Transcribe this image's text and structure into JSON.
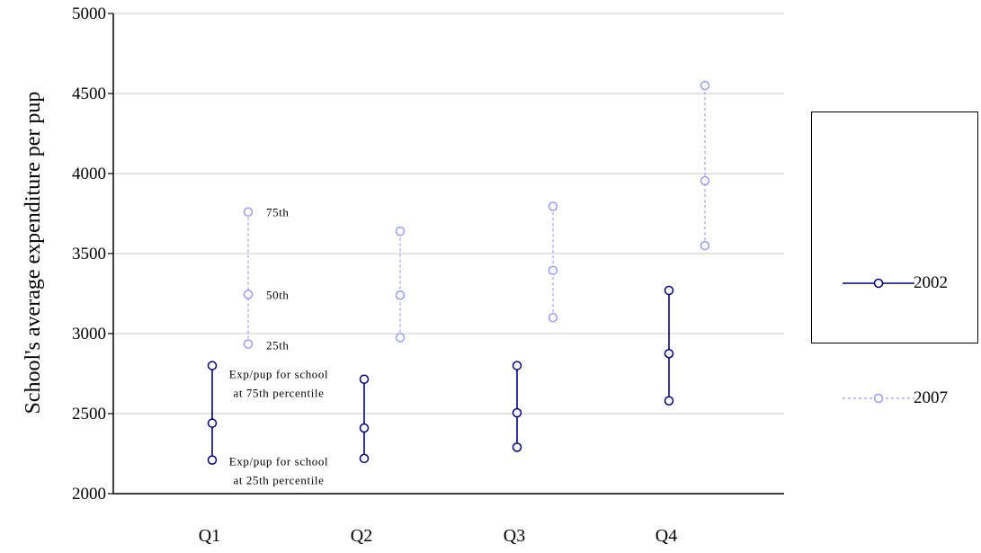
{
  "chart_data": {
    "type": "line",
    "title": "",
    "ylabel": "School's average expenditure per pup",
    "xlabel": "",
    "categories": [
      "Q1",
      "Q2",
      "Q3",
      "Q4"
    ],
    "ylim": [
      2000,
      5000
    ],
    "yticks": [
      2000,
      2500,
      3000,
      3500,
      4000,
      4500,
      5000
    ],
    "grid": true,
    "legend_position": "right",
    "series": [
      {
        "name": "2002",
        "color": "#000080",
        "style": "solid",
        "p25": [
          2210,
          2220,
          2290,
          2580
        ],
        "p50": [
          2440,
          2410,
          2505,
          2875
        ],
        "p75": [
          2800,
          2715,
          2800,
          3270
        ]
      },
      {
        "name": "2007",
        "color": "#9999ff",
        "style": "dashed",
        "p25": [
          2935,
          2975,
          3100,
          3550
        ],
        "p50": [
          3245,
          3240,
          3395,
          3955
        ],
        "p75": [
          3760,
          3640,
          3795,
          4550
        ]
      }
    ],
    "annotations": {
      "p75_2007": "75th",
      "p50_2007": "50th",
      "p25_2007": "25th",
      "p75_2002_line1": "Exp/pup for school",
      "p75_2002_line2": "at 75th percentile",
      "p25_2002_line1": "Exp/pup for school",
      "p25_2002_line2": "at 25th percentile"
    }
  }
}
